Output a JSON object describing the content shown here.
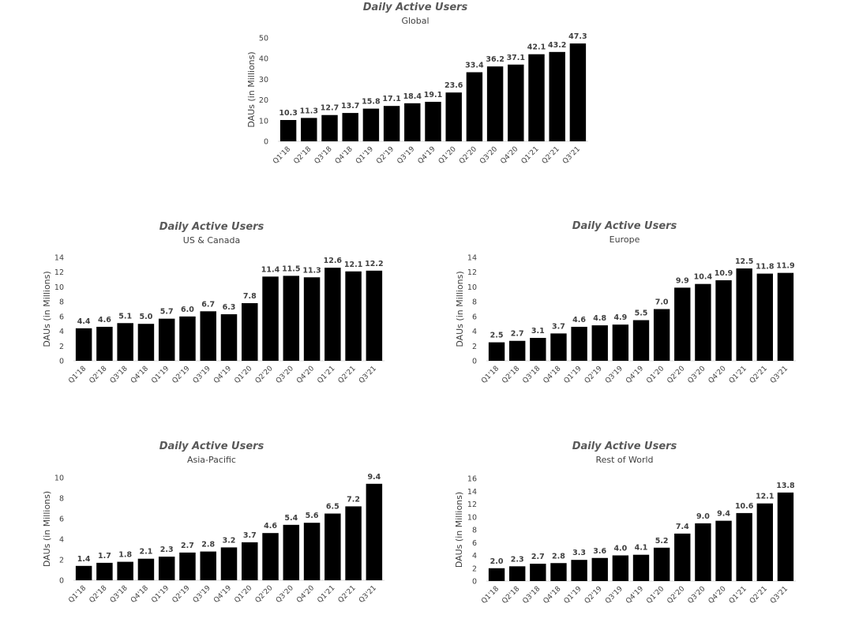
{
  "colors": {
    "bar": "#000000",
    "axis": "#d9d9d9",
    "text": "#404040",
    "title": "#595959"
  },
  "chart_data": [
    {
      "id": "global",
      "type": "bar",
      "title": "Daily Active Users",
      "subtitle": "Global",
      "ylabel": "DAUs (in Millions)",
      "xlabel": "",
      "ylim": [
        0,
        50
      ],
      "yticks": [
        0,
        10,
        20,
        30,
        40,
        50
      ],
      "categories": [
        "Q1'18",
        "Q2'18",
        "Q3'18",
        "Q4'18",
        "Q1'19",
        "Q2'19",
        "Q3'19",
        "Q4'19",
        "Q1'20",
        "Q2'20",
        "Q3'20",
        "Q4'20",
        "Q1'21",
        "Q2'21",
        "Q3'21"
      ],
      "values": [
        10.3,
        11.3,
        12.7,
        13.7,
        15.8,
        17.1,
        18.4,
        19.1,
        23.6,
        33.4,
        36.2,
        37.1,
        42.1,
        43.2,
        47.3
      ],
      "labels": [
        "10.3",
        "11.3",
        "12.7",
        "13.7",
        "15.8",
        "17.1",
        "18.4",
        "19.1",
        "23.6",
        "33.4",
        "36.2",
        "37.1",
        "42.1",
        "43.2",
        "47.3"
      ]
    },
    {
      "id": "us-canada",
      "type": "bar",
      "title": "Daily Active Users",
      "subtitle": "US & Canada",
      "ylabel": "DAUs (in Millions)",
      "xlabel": "",
      "ylim": [
        0,
        14
      ],
      "yticks": [
        0,
        2,
        4,
        6,
        8,
        10,
        12,
        14
      ],
      "categories": [
        "Q1'18",
        "Q2'18",
        "Q3'18",
        "Q4'18",
        "Q1'19",
        "Q2'19",
        "Q3'19",
        "Q4'19",
        "Q1'20",
        "Q2'20",
        "Q3'20",
        "Q4'20",
        "Q1'21",
        "Q2'21",
        "Q3'21"
      ],
      "values": [
        4.4,
        4.6,
        5.1,
        5.0,
        5.7,
        6.0,
        6.7,
        6.3,
        7.8,
        11.4,
        11.5,
        11.3,
        12.6,
        12.1,
        12.2
      ],
      "labels": [
        "4.4",
        "4.6",
        "5.1",
        "5.0",
        "5.7",
        "6.0",
        "6.7",
        "6.3",
        "7.8",
        "11.4",
        "11.5",
        "11.3",
        "12.6",
        "12.1",
        "12.2"
      ]
    },
    {
      "id": "europe",
      "type": "bar",
      "title": "Daily Active Users",
      "subtitle": "Europe",
      "ylabel": "DAUs (in Millions)",
      "xlabel": "",
      "ylim": [
        0,
        14
      ],
      "yticks": [
        0,
        2,
        4,
        6,
        8,
        10,
        12,
        14
      ],
      "categories": [
        "Q1'18",
        "Q2'18",
        "Q3'18",
        "Q4'18",
        "Q1'19",
        "Q2'19",
        "Q3'19",
        "Q4'19",
        "Q1'20",
        "Q2'20",
        "Q3'20",
        "Q4'20",
        "Q1'21",
        "Q2'21",
        "Q3'21"
      ],
      "values": [
        2.5,
        2.7,
        3.1,
        3.7,
        4.6,
        4.8,
        4.9,
        5.5,
        7.0,
        9.9,
        10.4,
        10.9,
        12.5,
        11.8,
        11.9
      ],
      "labels": [
        "2.5",
        "2.7",
        "3.1",
        "3.7",
        "4.6",
        "4.8",
        "4.9",
        "5.5",
        "7.0",
        "9.9",
        "10.4",
        "10.9",
        "12.5",
        "11.8",
        "11.9"
      ]
    },
    {
      "id": "asia-pacific",
      "type": "bar",
      "title": "Daily Active Users",
      "subtitle": "Asia-Pacific",
      "ylabel": "DAUs (in Millions)",
      "xlabel": "",
      "ylim": [
        0,
        10
      ],
      "yticks": [
        0,
        2,
        4,
        6,
        8,
        10
      ],
      "categories": [
        "Q1'18",
        "Q2'18",
        "Q3'18",
        "Q4'18",
        "Q1'19",
        "Q2'19",
        "Q3'19",
        "Q4'19",
        "Q1'20",
        "Q2'20",
        "Q3'20",
        "Q4'20",
        "Q1'21",
        "Q2'21",
        "Q3'21"
      ],
      "values": [
        1.4,
        1.7,
        1.8,
        2.1,
        2.3,
        2.7,
        2.8,
        3.2,
        3.7,
        4.6,
        5.4,
        5.6,
        6.5,
        7.2,
        9.4
      ],
      "labels": [
        "1.4",
        "1.7",
        "1.8",
        "2.1",
        "2.3",
        "2.7",
        "2.8",
        "3.2",
        "3.7",
        "4.6",
        "5.4",
        "5.6",
        "6.5",
        "7.2",
        "9.4"
      ]
    },
    {
      "id": "rest-of-world",
      "type": "bar",
      "title": "Daily Active Users",
      "subtitle": "Rest of World",
      "ylabel": "DAUs (in Millions)",
      "xlabel": "",
      "ylim": [
        0,
        16
      ],
      "yticks": [
        0,
        2,
        4,
        6,
        8,
        10,
        12,
        14,
        16
      ],
      "categories": [
        "Q1'18",
        "Q2'18",
        "Q3'18",
        "Q4'18",
        "Q1'19",
        "Q2'19",
        "Q3'19",
        "Q4'19",
        "Q1'20",
        "Q2'20",
        "Q3'20",
        "Q4'20",
        "Q1'21",
        "Q2'21",
        "Q3'21"
      ],
      "values": [
        2.0,
        2.3,
        2.7,
        2.8,
        3.3,
        3.6,
        4.0,
        4.1,
        5.2,
        7.4,
        9.0,
        9.4,
        10.6,
        12.1,
        13.8
      ],
      "labels": [
        "2.0",
        "2.3",
        "2.7",
        "2.8",
        "3.3",
        "3.6",
        "4.0",
        "4.1",
        "5.2",
        "7.4",
        "9.0",
        "9.4",
        "10.6",
        "12.1",
        "13.8"
      ]
    }
  ]
}
